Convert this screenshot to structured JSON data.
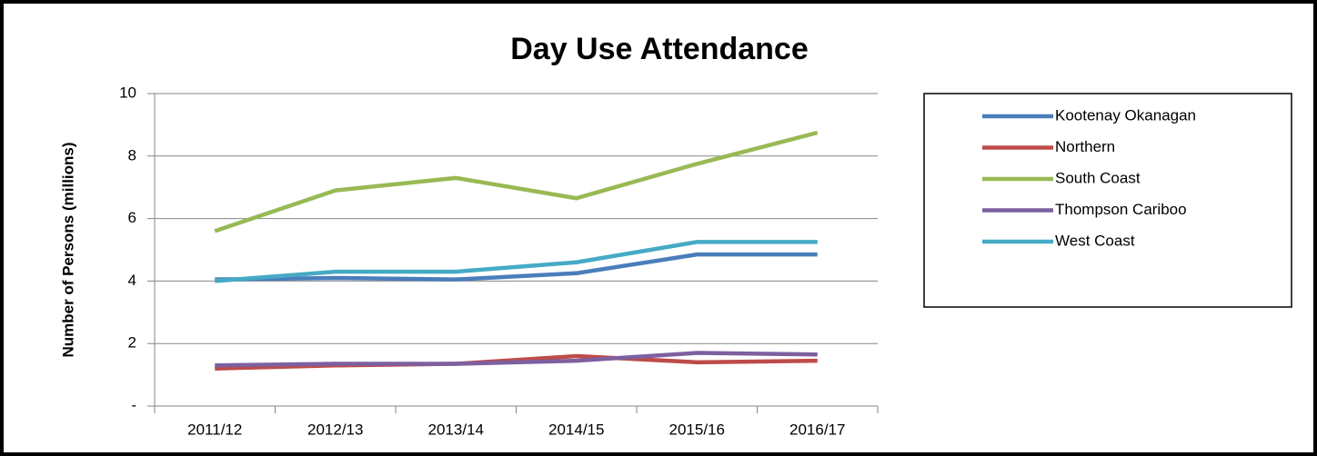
{
  "chart_data": {
    "type": "line",
    "title": "Day Use Attendance",
    "ylabel": "Number of Persons (millions)",
    "categories": [
      "2011/12",
      "2012/13",
      "2013/14",
      "2014/15",
      "2015/16",
      "2016/17"
    ],
    "series": [
      {
        "name": "Kootenay Okanagan",
        "color": "#4a7ebb",
        "values": [
          4.05,
          4.1,
          4.05,
          4.25,
          4.85,
          4.85
        ]
      },
      {
        "name": "Northern",
        "color": "#be4b48",
        "values": [
          1.2,
          1.3,
          1.35,
          1.6,
          1.4,
          1.45
        ]
      },
      {
        "name": "South Coast",
        "color": "#98b954",
        "values": [
          5.6,
          6.9,
          7.3,
          6.65,
          7.75,
          8.75
        ]
      },
      {
        "name": "Thompson Cariboo",
        "color": "#7d60a0",
        "values": [
          1.3,
          1.35,
          1.35,
          1.45,
          1.7,
          1.65
        ]
      },
      {
        "name": "West Coast",
        "color": "#46aac5",
        "values": [
          4.0,
          4.3,
          4.3,
          4.6,
          5.25,
          5.25
        ]
      }
    ],
    "ylim": [
      0,
      10
    ],
    "yticks": [
      {
        "value": 0,
        "label": "-"
      },
      2,
      4,
      6,
      8,
      10
    ],
    "grid": true,
    "legend": "right"
  }
}
